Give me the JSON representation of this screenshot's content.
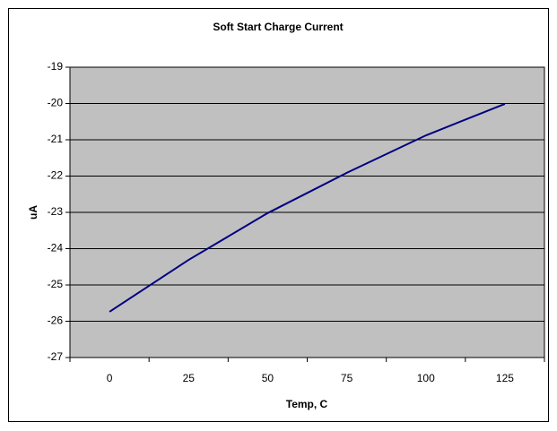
{
  "chart_data": {
    "type": "line",
    "title": "Soft Start Charge Current",
    "x_label": "Temp, C",
    "y_label": "uA",
    "categories": [
      "0",
      "25",
      "50",
      "75",
      "100",
      "125"
    ],
    "series": [
      {
        "name": "uA",
        "color": "#000080",
        "values": [
          -25.74,
          -24.31,
          -23.02,
          -21.91,
          -20.88,
          -20.01
        ]
      }
    ],
    "ylim": [
      -27,
      -19
    ],
    "yticks": [
      -27,
      -26,
      -25,
      -24,
      -23,
      -22,
      -21,
      -20,
      -19
    ],
    "grid": true
  }
}
